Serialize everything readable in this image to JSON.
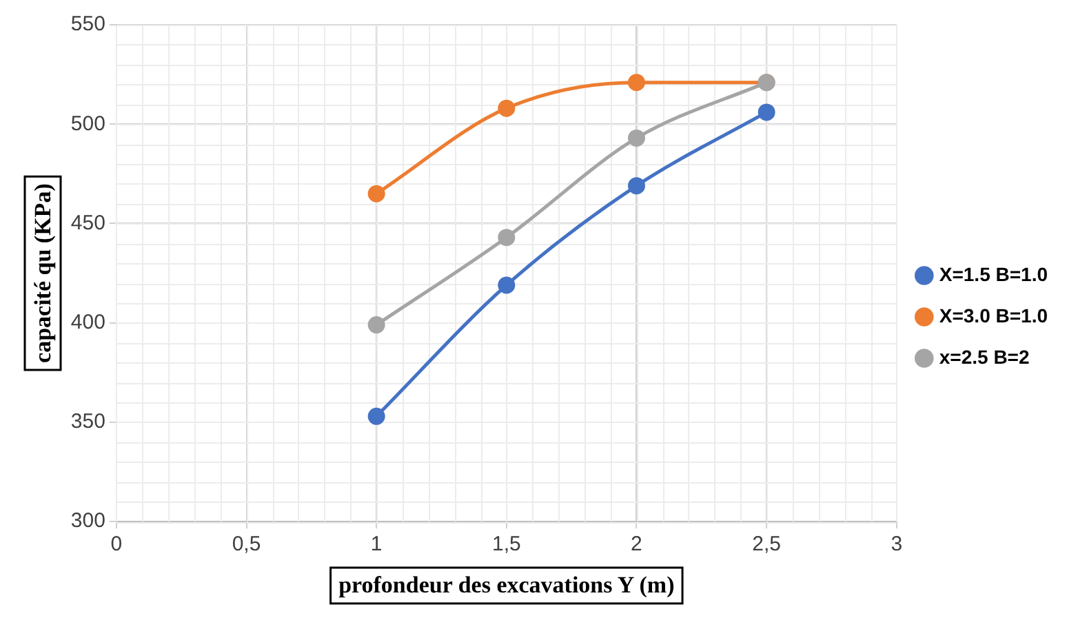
{
  "chart_data": {
    "type": "line",
    "xlabel": "profondeur des excavations Y (m)",
    "ylabel": "capacité qu (KPa)",
    "x": [
      1,
      1.5,
      2,
      2.5
    ],
    "series": [
      {
        "name": "X=1.5 B=1.0",
        "color": "#4472c4",
        "values": [
          353,
          419,
          469,
          506
        ]
      },
      {
        "name": "X=3.0 B=1.0",
        "color": "#ed7d31",
        "values": [
          465,
          508,
          521,
          521
        ]
      },
      {
        "name": "x=2.5 B=2",
        "color": "#a5a5a5",
        "values": [
          399,
          443,
          493,
          521
        ]
      }
    ],
    "xlim": [
      0,
      3
    ],
    "xticks": [
      0,
      {
        "value": 0.5,
        "label": "0,5"
      },
      1,
      {
        "value": 1.5,
        "label": "1,5"
      },
      2,
      {
        "value": 2.5,
        "label": "2,5"
      },
      3
    ],
    "ylim": [
      300,
      550
    ],
    "yticks": [
      300,
      350,
      400,
      450,
      500,
      550
    ],
    "grid": true,
    "legend": "right",
    "marker": "circle",
    "line_style": "solid"
  }
}
